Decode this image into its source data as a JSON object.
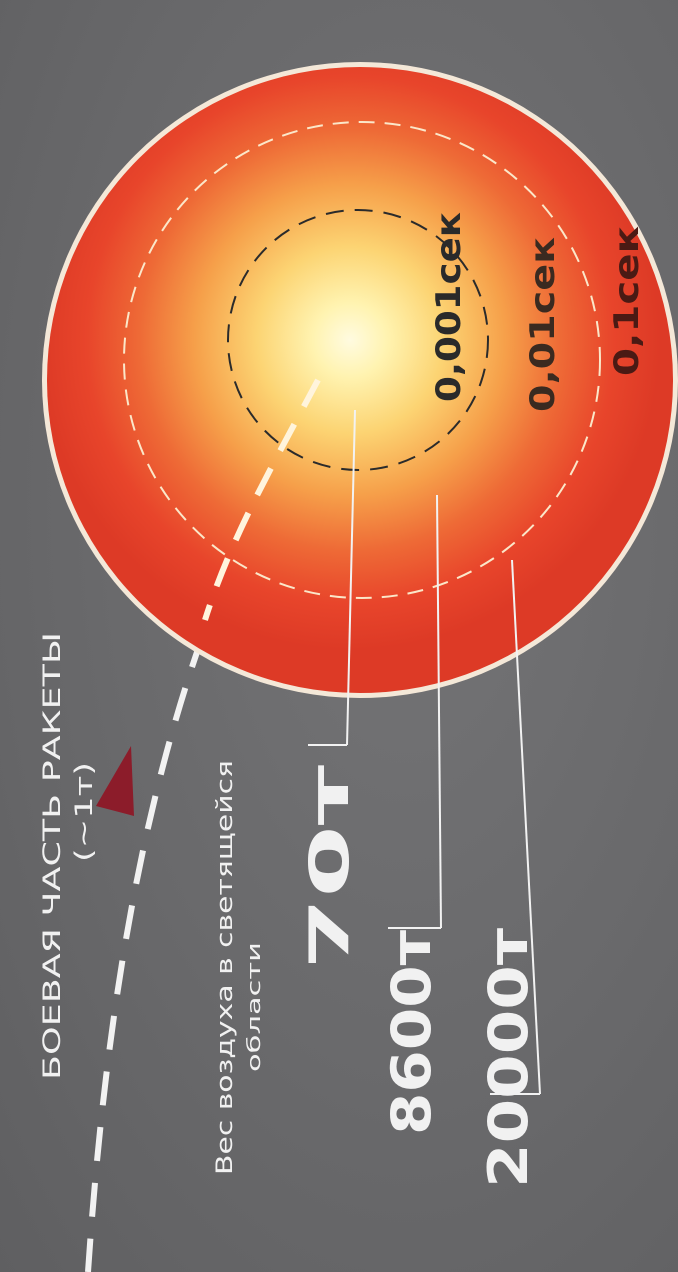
{
  "warhead": {
    "label_line1": "БОЕВАЯ ЧАСТЬ РАКЕТЫ",
    "label_line2": "(~1т)"
  },
  "air_weight": {
    "label_line1": "Вес воздуха в светящейся",
    "label_line2": "области"
  },
  "masses": [
    {
      "label": "70т",
      "time": "0,001сек"
    },
    {
      "label": "8600т",
      "time": "0,01сек"
    },
    {
      "label": "20000т",
      "time": "0,1сек"
    }
  ],
  "colors": {
    "background": "#6a6a6c",
    "outer_fireball": "#e8402a",
    "mid_fireball": "#f07a3a",
    "core": "#fff7c8",
    "warhead": "#8c1c2a",
    "lines": "#f2f2f2"
  }
}
